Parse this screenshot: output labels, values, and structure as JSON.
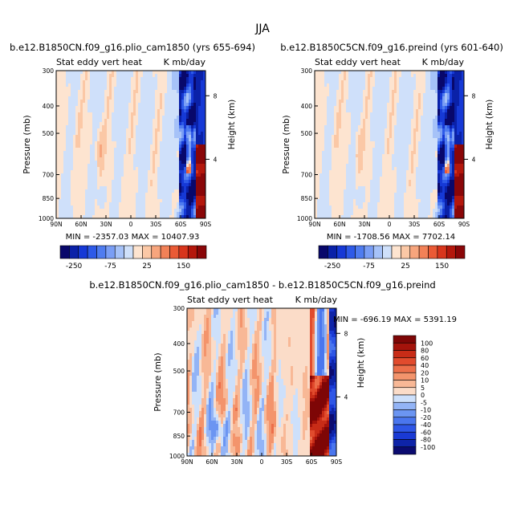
{
  "figure": {
    "title": "JJA"
  },
  "colors": {
    "neg": [
      "#08086b",
      "#0a21a8",
      "#1639d6",
      "#2e5ae8",
      "#4f7cf0",
      "#7a9ef5",
      "#a6c2f8",
      "#cfe0fa"
    ],
    "pos": [
      "#fde4d0",
      "#fbc8a6",
      "#f7a57d",
      "#f28157",
      "#ea5a35",
      "#d8351c",
      "#b4170c",
      "#8a0608"
    ],
    "diff_neg": [
      "#0b0b70",
      "#0e24a8",
      "#1a3ad4",
      "#2e56e6",
      "#4a76ee",
      "#6b95f2",
      "#93b4f6",
      "#cde0fb"
    ],
    "diff_pos": [
      "#fbdcc8",
      "#f8b896",
      "#f3946c",
      "#ec6f4a",
      "#e14b2d",
      "#c82c17",
      "#a4130b",
      "#7e0606"
    ]
  },
  "chart_data": [
    {
      "type": "heatmap",
      "title": "b.e12.B1850CN.f09_g16.plio_cam1850 (yrs 655-694)",
      "left_label": "Stat eddy vert heat",
      "right_label": "K mb/day",
      "ylabel": "Pressure (mb)",
      "ylabel_right": "Height (km)",
      "x_ticks": [
        "90N",
        "60N",
        "30N",
        "0",
        "30S",
        "60S",
        "90S"
      ],
      "y_ticks": [
        "300",
        "400",
        "500",
        "700",
        "850",
        "1000"
      ],
      "y_right_ticks": [
        "8",
        "4"
      ],
      "xlim": [
        90,
        -90
      ],
      "ylim": [
        1000,
        300
      ],
      "min_max": "MIN = -2357.03   MAX = 10407.93",
      "colorbar_labels": [
        "-250",
        "-75",
        "25",
        "150"
      ]
    },
    {
      "type": "heatmap",
      "title": "b.e12.B1850C5CN.f09_g16.preind (yrs 601-640)",
      "left_label": "Stat eddy vert heat",
      "right_label": "K mb/day",
      "ylabel": "Pressure (mb)",
      "ylabel_right": "Height (km)",
      "x_ticks": [
        "90N",
        "60N",
        "30N",
        "0",
        "30S",
        "60S",
        "90S"
      ],
      "y_ticks": [
        "300",
        "400",
        "500",
        "700",
        "850",
        "1000"
      ],
      "y_right_ticks": [
        "8",
        "4"
      ],
      "xlim": [
        90,
        -90
      ],
      "ylim": [
        1000,
        300
      ],
      "min_max": "MIN = -1708.56   MAX = 7702.14",
      "colorbar_labels": [
        "-250",
        "-75",
        "25",
        "150"
      ]
    },
    {
      "type": "heatmap",
      "title": "b.e12.B1850CN.f09_g16.plio_cam1850 - b.e12.B1850C5CN.f09_g16.preind",
      "left_label": "Stat eddy vert heat",
      "right_label": "K mb/day",
      "ylabel": "Pressure (mb)",
      "ylabel_right": "Height (km)",
      "x_ticks": [
        "90N",
        "60N",
        "30N",
        "0",
        "30S",
        "60S",
        "90S"
      ],
      "y_ticks": [
        "300",
        "400",
        "500",
        "700",
        "850",
        "1000"
      ],
      "y_right_ticks": [
        "8",
        "4"
      ],
      "xlim": [
        90,
        -90
      ],
      "ylim": [
        1000,
        300
      ],
      "min_max": "MIN = -696.19   MAX = 5391.19",
      "colorbar_labels": [
        "100",
        "80",
        "60",
        "40",
        "20",
        "10",
        "5",
        "0",
        "-5",
        "-10",
        "-20",
        "-40",
        "-60",
        "-80",
        "-100"
      ]
    }
  ]
}
